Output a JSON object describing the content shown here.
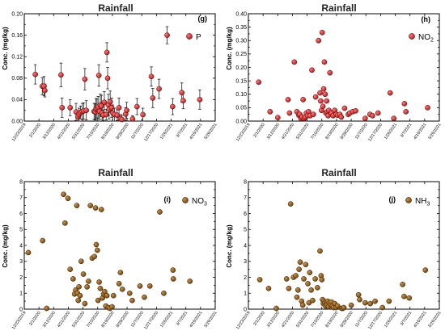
{
  "figure": {
    "x_tick_labels": [
      "12/23/2019",
      "2/1/2020",
      "3/12/2020",
      "4/21/2020",
      "5/31/2020",
      "7/10/2020",
      "8/19/2020",
      "9/28/2020",
      "11/7/2020",
      "12/17/2020",
      "1/26/2021",
      "3/7/2021",
      "4/16/2021",
      "5/26/2021"
    ]
  },
  "chart_data": [
    {
      "type": "scatter",
      "title": "Rainfall",
      "panel_label": "(g)",
      "legend": {
        "main": "P",
        "sub": "",
        "color": "#cc1f1f",
        "position": "top-right"
      },
      "ylabel": "Conc. (mg/kg)",
      "ylim": [
        0,
        0.2
      ],
      "y_ticks": [
        0,
        0.04,
        0.08,
        0.12,
        0.16,
        0.2
      ],
      "y_tick_labels": [
        "0.00",
        "0.04",
        "0.08",
        "0.12",
        "0.16",
        "0.20"
      ],
      "marker_color": "#cc1f1f",
      "error_bars": true,
      "points": [
        {
          "x": "2020-01-22",
          "y": 0.087,
          "err": 0.018
        },
        {
          "x": "2020-02-10",
          "y": 0.065,
          "err": 0.016
        },
        {
          "x": "2020-02-15",
          "y": 0.065,
          "err": 0.018
        },
        {
          "x": "2020-02-17",
          "y": 0.057,
          "err": 0.012
        },
        {
          "x": "2020-04-01",
          "y": 0.086,
          "err": 0.022
        },
        {
          "x": "2020-04-04",
          "y": 0.025,
          "err": 0.018
        },
        {
          "x": "2020-04-26",
          "y": 0.025,
          "err": 0.015
        },
        {
          "x": "2020-05-12",
          "y": 0.017,
          "err": 0.016
        },
        {
          "x": "2020-05-17",
          "y": 0.008,
          "err": 0.01
        },
        {
          "x": "2020-05-20",
          "y": 0.012,
          "err": 0.012
        },
        {
          "x": "2020-05-24",
          "y": 0.016,
          "err": 0.012
        },
        {
          "x": "2020-05-29",
          "y": 0.018,
          "err": 0.015
        },
        {
          "x": "2020-06-02",
          "y": 0.019,
          "err": 0.015
        },
        {
          "x": "2020-06-05",
          "y": 0.078,
          "err": 0.02
        },
        {
          "x": "2020-06-09",
          "y": 0.02,
          "err": 0.018
        },
        {
          "x": "2020-06-30",
          "y": 0.018,
          "err": 0.015
        },
        {
          "x": "2020-07-03",
          "y": 0.017,
          "err": 0.015
        },
        {
          "x": "2020-07-05",
          "y": 0.022,
          "err": 0.02
        },
        {
          "x": "2020-07-08",
          "y": 0.023,
          "err": 0.018
        },
        {
          "x": "2020-07-11",
          "y": 0.026,
          "err": 0.02
        },
        {
          "x": "2020-07-13",
          "y": 0.085,
          "err": 0.02
        },
        {
          "x": "2020-07-15",
          "y": 0.018,
          "err": 0.015
        },
        {
          "x": "2020-07-17",
          "y": 0.03,
          "err": 0.02
        },
        {
          "x": "2020-07-20",
          "y": 0.028,
          "err": 0.02
        },
        {
          "x": "2020-07-22",
          "y": 0.015,
          "err": 0.012
        },
        {
          "x": "2020-07-25",
          "y": 0.011,
          "err": 0.01
        },
        {
          "x": "2020-07-28",
          "y": 0.035,
          "err": 0.02
        },
        {
          "x": "2020-08-02",
          "y": 0.012,
          "err": 0.01
        },
        {
          "x": "2020-08-04",
          "y": 0.128,
          "err": 0.018
        },
        {
          "x": "2020-08-06",
          "y": 0.08,
          "err": 0.02
        },
        {
          "x": "2020-08-08",
          "y": 0.03,
          "err": 0.02
        },
        {
          "x": "2020-08-10",
          "y": 0.022,
          "err": 0.018
        },
        {
          "x": "2020-08-13",
          "y": 0.036,
          "err": 0.02
        },
        {
          "x": "2020-08-17",
          "y": 0.025,
          "err": 0.018
        },
        {
          "x": "2020-08-20",
          "y": 0.015,
          "err": 0.015
        },
        {
          "x": "2020-08-25",
          "y": 0.012,
          "err": 0.012
        },
        {
          "x": "2020-09-01",
          "y": 0.011,
          "err": 0.01
        },
        {
          "x": "2020-09-06",
          "y": 0.025,
          "err": 0.018
        },
        {
          "x": "2020-09-10",
          "y": 0.004,
          "err": 0.008
        },
        {
          "x": "2020-09-14",
          "y": 0.003,
          "err": 0.008
        },
        {
          "x": "2020-09-24",
          "y": 0.013,
          "err": 0.012
        },
        {
          "x": "2020-09-27",
          "y": 0.02,
          "err": 0.015
        },
        {
          "x": "2020-10-13",
          "y": 0.004,
          "err": 0.006
        },
        {
          "x": "2020-10-25",
          "y": 0.027,
          "err": 0.015
        },
        {
          "x": "2020-11-10",
          "y": 0.012,
          "err": 0.012
        },
        {
          "x": "2020-12-03",
          "y": 0.083,
          "err": 0.018
        },
        {
          "x": "2020-12-07",
          "y": 0.043,
          "err": 0.018
        },
        {
          "x": "2020-12-24",
          "y": 0.06,
          "err": 0.018
        },
        {
          "x": "2021-01-15",
          "y": 0.16,
          "err": 0.016
        },
        {
          "x": "2021-01-30",
          "y": 0.027,
          "err": 0.015
        },
        {
          "x": "2021-02-24",
          "y": 0.053,
          "err": 0.018
        },
        {
          "x": "2021-02-28",
          "y": 0.038,
          "err": 0.015
        },
        {
          "x": "2021-04-14",
          "y": 0.04,
          "err": 0.018
        }
      ]
    },
    {
      "type": "scatter",
      "title": "Rainfall",
      "panel_label": "(h)",
      "legend": {
        "main": "NO",
        "sub": "2",
        "color": "#cc1f1f",
        "position": "top-right"
      },
      "ylabel": "Conc. (mg/kg)",
      "ylim": [
        0,
        0.4
      ],
      "y_ticks": [
        0,
        0.05,
        0.1,
        0.15,
        0.2,
        0.25,
        0.3,
        0.35,
        0.4
      ],
      "y_tick_labels": [
        "0.00",
        "0.05",
        "0.10",
        "0.15",
        "0.20",
        "0.25",
        "0.30",
        "0.35",
        "0.40"
      ],
      "marker_color": "#cc1f1f",
      "error_bars": false,
      "points": [
        {
          "x": "2020-01-20",
          "y": 0.145
        },
        {
          "x": "2020-02-20",
          "y": 0.035
        },
        {
          "x": "2020-03-12",
          "y": 0.013
        },
        {
          "x": "2020-04-09",
          "y": 0.08
        },
        {
          "x": "2020-04-13",
          "y": 0.03
        },
        {
          "x": "2020-04-26",
          "y": 0.22
        },
        {
          "x": "2020-05-03",
          "y": 0.035
        },
        {
          "x": "2020-05-08",
          "y": 0.022
        },
        {
          "x": "2020-05-11",
          "y": 0.025
        },
        {
          "x": "2020-05-14",
          "y": 0.01
        },
        {
          "x": "2020-05-17",
          "y": 0.015
        },
        {
          "x": "2020-05-20",
          "y": 0.08
        },
        {
          "x": "2020-05-23",
          "y": 0.01
        },
        {
          "x": "2020-05-26",
          "y": 0.015
        },
        {
          "x": "2020-05-29",
          "y": 0.03
        },
        {
          "x": "2020-06-01",
          "y": 0.02
        },
        {
          "x": "2020-06-04",
          "y": 0.035
        },
        {
          "x": "2020-06-08",
          "y": 0.02
        },
        {
          "x": "2020-06-13",
          "y": 0.19
        },
        {
          "x": "2020-06-17",
          "y": 0.025
        },
        {
          "x": "2020-06-23",
          "y": 0.09
        },
        {
          "x": "2020-07-01",
          "y": 0.3
        },
        {
          "x": "2020-07-05",
          "y": 0.105
        },
        {
          "x": "2020-07-07",
          "y": 0.075
        },
        {
          "x": "2020-07-09",
          "y": 0.04
        },
        {
          "x": "2020-07-11",
          "y": 0.33
        },
        {
          "x": "2020-07-13",
          "y": 0.055
        },
        {
          "x": "2020-07-15",
          "y": 0.12
        },
        {
          "x": "2020-07-17",
          "y": 0.22
        },
        {
          "x": "2020-07-19",
          "y": 0.1
        },
        {
          "x": "2020-07-21",
          "y": 0.03
        },
        {
          "x": "2020-07-23",
          "y": 0.075
        },
        {
          "x": "2020-07-25",
          "y": 0.035
        },
        {
          "x": "2020-07-27",
          "y": 0.02
        },
        {
          "x": "2020-07-29",
          "y": 0.04
        },
        {
          "x": "2020-08-01",
          "y": 0.18
        },
        {
          "x": "2020-08-05",
          "y": 0.03
        },
        {
          "x": "2020-08-10",
          "y": 0.02
        },
        {
          "x": "2020-08-14",
          "y": 0.04
        },
        {
          "x": "2020-08-18",
          "y": 0.025
        },
        {
          "x": "2020-08-22",
          "y": 0.022
        },
        {
          "x": "2020-08-28",
          "y": 0.025
        },
        {
          "x": "2020-09-01",
          "y": 0.015
        },
        {
          "x": "2020-09-10",
          "y": 0.048
        },
        {
          "x": "2020-09-20",
          "y": 0.025
        },
        {
          "x": "2020-09-24",
          "y": 0.03
        },
        {
          "x": "2020-10-02",
          "y": 0.035
        },
        {
          "x": "2020-10-10",
          "y": 0.038
        },
        {
          "x": "2020-11-05",
          "y": 0.01
        },
        {
          "x": "2020-11-18",
          "y": 0.025
        },
        {
          "x": "2020-11-25",
          "y": 0.02
        },
        {
          "x": "2020-12-10",
          "y": 0.03
        },
        {
          "x": "2021-01-12",
          "y": 0.105
        },
        {
          "x": "2021-01-22",
          "y": 0.01
        },
        {
          "x": "2021-02-20",
          "y": 0.065
        },
        {
          "x": "2021-02-24",
          "y": 0.035
        },
        {
          "x": "2021-04-24",
          "y": 0.05
        }
      ]
    },
    {
      "type": "scatter",
      "title": "Rainfall",
      "panel_label": "(i)",
      "legend": {
        "main": "NO",
        "sub": "3",
        "color": "#7b4a12",
        "position": "top-right"
      },
      "ylabel": "Conc. (mg/kg)",
      "ylim": [
        0,
        8
      ],
      "y_ticks": [
        0,
        1,
        2,
        3,
        4,
        5,
        6,
        7,
        8
      ],
      "y_tick_labels": [
        "0",
        "1",
        "2",
        "3",
        "4",
        "5",
        "6",
        "7",
        "8"
      ],
      "marker_color": "#7b4a12",
      "error_bars": false,
      "points": [
        {
          "x": "2020-01-03",
          "y": 3.55
        },
        {
          "x": "2020-02-11",
          "y": 4.3
        },
        {
          "x": "2020-02-22",
          "y": 0.05
        },
        {
          "x": "2020-04-08",
          "y": 7.2
        },
        {
          "x": "2020-04-12",
          "y": 5.4
        },
        {
          "x": "2020-04-20",
          "y": 6.95
        },
        {
          "x": "2020-04-26",
          "y": 2.5
        },
        {
          "x": "2020-05-04",
          "y": 1.9
        },
        {
          "x": "2020-05-08",
          "y": 0.95
        },
        {
          "x": "2020-05-11",
          "y": 1.2
        },
        {
          "x": "2020-05-14",
          "y": 6.5
        },
        {
          "x": "2020-05-16",
          "y": 1.0
        },
        {
          "x": "2020-05-18",
          "y": 0.55
        },
        {
          "x": "2020-05-20",
          "y": 1.4
        },
        {
          "x": "2020-05-23",
          "y": 0.85
        },
        {
          "x": "2020-05-26",
          "y": 3.0
        },
        {
          "x": "2020-06-01",
          "y": 2.2
        },
        {
          "x": "2020-06-05",
          "y": 0.35
        },
        {
          "x": "2020-06-11",
          "y": 1.4
        },
        {
          "x": "2020-06-15",
          "y": 1.75
        },
        {
          "x": "2020-06-20",
          "y": 6.5
        },
        {
          "x": "2020-06-25",
          "y": 3.2
        },
        {
          "x": "2020-07-01",
          "y": 3.3
        },
        {
          "x": "2020-07-04",
          "y": 6.35
        },
        {
          "x": "2020-07-06",
          "y": 4.05
        },
        {
          "x": "2020-07-09",
          "y": 3.7
        },
        {
          "x": "2020-07-11",
          "y": 0.55
        },
        {
          "x": "2020-07-14",
          "y": 1.7
        },
        {
          "x": "2020-07-17",
          "y": 1.3
        },
        {
          "x": "2020-07-20",
          "y": 6.25
        },
        {
          "x": "2020-07-23",
          "y": 0.7
        },
        {
          "x": "2020-07-26",
          "y": 0.95
        },
        {
          "x": "2020-07-29",
          "y": 1.1
        },
        {
          "x": "2020-08-01",
          "y": 0.2
        },
        {
          "x": "2020-08-04",
          "y": 0.85
        },
        {
          "x": "2020-08-08",
          "y": 0.1
        },
        {
          "x": "2020-08-12",
          "y": 0.05
        },
        {
          "x": "2020-08-18",
          "y": 0.15
        },
        {
          "x": "2020-08-22",
          "y": 0.85
        },
        {
          "x": "2020-09-06",
          "y": 1.6
        },
        {
          "x": "2020-09-10",
          "y": 2.3
        },
        {
          "x": "2020-09-15",
          "y": 1.25
        },
        {
          "x": "2020-10-05",
          "y": 1.0
        },
        {
          "x": "2020-10-12",
          "y": 0.55
        },
        {
          "x": "2020-11-02",
          "y": 1.45
        },
        {
          "x": "2020-11-14",
          "y": 0.75
        },
        {
          "x": "2020-11-29",
          "y": 1.45
        },
        {
          "x": "2020-12-26",
          "y": 6.1
        },
        {
          "x": "2021-01-06",
          "y": 1.0
        },
        {
          "x": "2021-01-31",
          "y": 2.45
        },
        {
          "x": "2021-02-01",
          "y": 1.9
        },
        {
          "x": "2021-03-18",
          "y": 1.75
        }
      ]
    },
    {
      "type": "scatter",
      "title": "Rainfall",
      "panel_label": "(j)",
      "legend": {
        "main": "NH",
        "sub": "3",
        "color": "#7b4a12",
        "position": "top-right"
      },
      "ylabel": "Conc. (mg/kg)",
      "ylim": [
        0,
        8
      ],
      "y_ticks": [
        0,
        1,
        2,
        3,
        4,
        5,
        6,
        7,
        8
      ],
      "y_tick_labels": [
        "0",
        "1",
        "2",
        "3",
        "4",
        "5",
        "6",
        "7",
        "8"
      ],
      "marker_color": "#7b4a12",
      "error_bars": false,
      "points": [
        {
          "x": "2020-01-23",
          "y": 1.85
        },
        {
          "x": "2020-02-16",
          "y": 1.3
        },
        {
          "x": "2020-03-08",
          "y": 0.05
        },
        {
          "x": "2020-04-05",
          "y": 1.9
        },
        {
          "x": "2020-04-11",
          "y": 1.3
        },
        {
          "x": "2020-04-16",
          "y": 6.6
        },
        {
          "x": "2020-04-24",
          "y": 2.0
        },
        {
          "x": "2020-04-30",
          "y": 2.1
        },
        {
          "x": "2020-05-03",
          "y": 0.75
        },
        {
          "x": "2020-05-06",
          "y": 1.2
        },
        {
          "x": "2020-05-09",
          "y": 2.5
        },
        {
          "x": "2020-05-12",
          "y": 2.95
        },
        {
          "x": "2020-05-16",
          "y": 0.5
        },
        {
          "x": "2020-05-19",
          "y": 0.25
        },
        {
          "x": "2020-05-22",
          "y": 1.9
        },
        {
          "x": "2020-05-27",
          "y": 2.8
        },
        {
          "x": "2020-06-02",
          "y": 1.6
        },
        {
          "x": "2020-06-05",
          "y": 0.4
        },
        {
          "x": "2020-06-07",
          "y": 2.3
        },
        {
          "x": "2020-06-11",
          "y": 1.2
        },
        {
          "x": "2020-06-15",
          "y": 0.55
        },
        {
          "x": "2020-06-22",
          "y": 1.9
        },
        {
          "x": "2020-06-28",
          "y": 1.35
        },
        {
          "x": "2020-07-05",
          "y": 3.65
        },
        {
          "x": "2020-07-08",
          "y": 2.1
        },
        {
          "x": "2020-07-10",
          "y": 1.85
        },
        {
          "x": "2020-07-12",
          "y": 0.6
        },
        {
          "x": "2020-07-14",
          "y": 0.35
        },
        {
          "x": "2020-07-16",
          "y": 0.5
        },
        {
          "x": "2020-07-18",
          "y": 0.4
        },
        {
          "x": "2020-07-20",
          "y": 0.2
        },
        {
          "x": "2020-07-22",
          "y": 0.45
        },
        {
          "x": "2020-07-24",
          "y": 0.3
        },
        {
          "x": "2020-07-26",
          "y": 0.5
        },
        {
          "x": "2020-07-28",
          "y": 0.15
        },
        {
          "x": "2020-07-30",
          "y": 0.4
        },
        {
          "x": "2020-08-02",
          "y": 0.3
        },
        {
          "x": "2020-08-05",
          "y": 0.45
        },
        {
          "x": "2020-08-08",
          "y": 0.2
        },
        {
          "x": "2020-08-11",
          "y": 0.1
        },
        {
          "x": "2020-08-14",
          "y": 0.35
        },
        {
          "x": "2020-08-18",
          "y": 0.1
        },
        {
          "x": "2020-08-22",
          "y": 0.2
        },
        {
          "x": "2020-09-02",
          "y": 0.05
        },
        {
          "x": "2020-09-05",
          "y": 0.05
        },
        {
          "x": "2020-09-08",
          "y": 0.1
        },
        {
          "x": "2020-09-28",
          "y": 0.25
        },
        {
          "x": "2020-10-18",
          "y": 0.9
        },
        {
          "x": "2020-10-21",
          "y": 0.6
        },
        {
          "x": "2020-11-05",
          "y": 0.4
        },
        {
          "x": "2020-11-19",
          "y": 0.35
        },
        {
          "x": "2020-12-02",
          "y": 0.5
        },
        {
          "x": "2020-12-22",
          "y": 0.1
        },
        {
          "x": "2021-01-09",
          "y": 0.5
        },
        {
          "x": "2021-02-15",
          "y": 1.55
        },
        {
          "x": "2021-02-19",
          "y": 0.8
        },
        {
          "x": "2021-03-05",
          "y": 0.7
        },
        {
          "x": "2021-04-18",
          "y": 2.45
        }
      ]
    }
  ]
}
